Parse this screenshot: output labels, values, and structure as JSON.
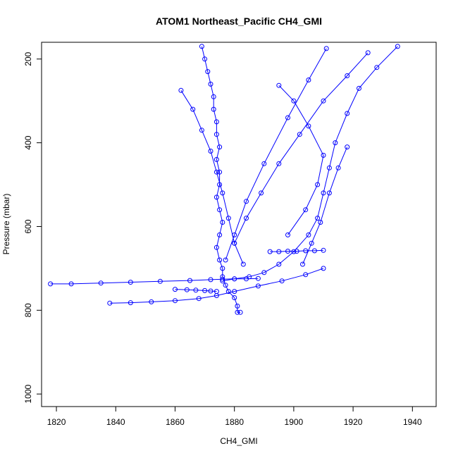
{
  "chart_data": {
    "type": "line",
    "title": "ATOM1 Northeast_Pacific CH4_GMI",
    "xlabel": "CH4_GMI",
    "ylabel": "Pressure (mbar)",
    "xlim": [
      1815,
      1948
    ],
    "ylim": [
      1030,
      160
    ],
    "y_reversed": true,
    "x_ticks": [
      "1820",
      "1840",
      "1860",
      "1880",
      "1900",
      "1920",
      "1940"
    ],
    "y_ticks": [
      "200",
      "400",
      "600",
      "800",
      "1000"
    ],
    "grid": false,
    "legend": "none",
    "color": "#0000ff",
    "marker": "open-circle",
    "series": [
      {
        "x": [
          1869,
          1870,
          1871,
          1872,
          1873,
          1873,
          1874,
          1874,
          1875,
          1874,
          1875,
          1875,
          1874,
          1875,
          1876,
          1875,
          1874,
          1875,
          1876,
          1876,
          1877,
          1878,
          1880,
          1881,
          1881,
          1882
        ],
        "y": [
          170,
          200,
          230,
          260,
          290,
          320,
          350,
          380,
          410,
          440,
          470,
          500,
          530,
          560,
          590,
          620,
          650,
          680,
          700,
          720,
          740,
          755,
          770,
          790,
          805,
          805
        ]
      },
      {
        "x": [
          1935,
          1928,
          1922,
          1918,
          1914,
          1912,
          1910,
          1908,
          1905,
          1900,
          1895,
          1890,
          1885,
          1880,
          1876
        ],
        "y": [
          170,
          220,
          270,
          330,
          400,
          460,
          520,
          580,
          620,
          660,
          690,
          710,
          720,
          725,
          730
        ]
      },
      {
        "x": [
          1818,
          1825,
          1835,
          1845,
          1855,
          1865,
          1872,
          1876,
          1880,
          1884,
          1888
        ],
        "y": [
          737,
          737,
          735,
          733,
          731,
          729,
          727,
          726,
          725,
          725,
          724
        ]
      },
      {
        "x": [
          1838,
          1845,
          1852,
          1860,
          1868,
          1874,
          1880,
          1888,
          1896,
          1904,
          1910
        ],
        "y": [
          783,
          782,
          780,
          777,
          772,
          765,
          755,
          742,
          730,
          715,
          700
        ]
      },
      {
        "x": [
          1862,
          1866,
          1869,
          1872,
          1874,
          1876,
          1878,
          1880,
          1883
        ],
        "y": [
          275,
          320,
          370,
          420,
          470,
          520,
          580,
          640,
          690
        ]
      },
      {
        "x": [
          1911,
          1905,
          1898,
          1890,
          1884,
          1880,
          1877
        ],
        "y": [
          175,
          250,
          340,
          450,
          540,
          620,
          680
        ]
      },
      {
        "x": [
          1925,
          1918,
          1910,
          1902,
          1895,
          1889,
          1884,
          1880
        ],
        "y": [
          185,
          240,
          300,
          380,
          450,
          520,
          580,
          640
        ]
      },
      {
        "x": [
          1895,
          1900,
          1905,
          1910,
          1908,
          1904,
          1898
        ],
        "y": [
          263,
          300,
          360,
          430,
          500,
          560,
          620
        ]
      },
      {
        "x": [
          1918,
          1915,
          1912,
          1909,
          1906,
          1903
        ],
        "y": [
          410,
          460,
          520,
          590,
          640,
          690
        ]
      },
      {
        "x": [
          1860,
          1864,
          1867,
          1870,
          1872,
          1874
        ],
        "y": [
          750,
          751,
          752,
          753,
          754,
          755
        ]
      },
      {
        "x": [
          1892,
          1895,
          1898,
          1901,
          1904,
          1907,
          1910
        ],
        "y": [
          660,
          660,
          659,
          659,
          658,
          658,
          657
        ]
      }
    ]
  }
}
